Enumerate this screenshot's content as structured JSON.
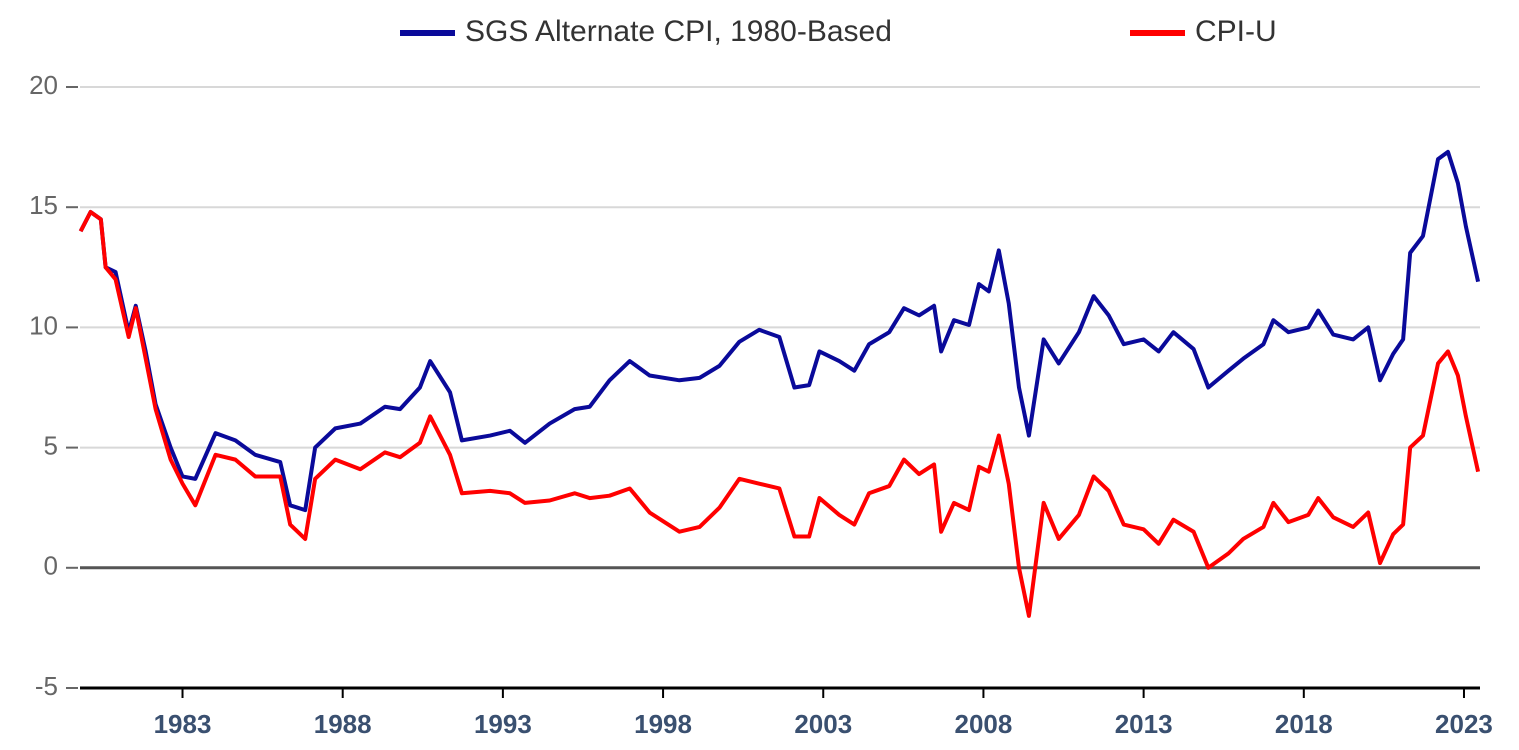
{
  "chart_data": {
    "type": "line",
    "x": [
      1979.82,
      1980.13,
      1980.45,
      1980.6,
      1980.91,
      1981.32,
      1981.54,
      1981.85,
      1982.16,
      1982.63,
      1983.0,
      1983.4,
      1984.03,
      1984.65,
      1985.27,
      1986.05,
      1986.36,
      1986.83,
      1987.14,
      1987.77,
      1988.55,
      1989.32,
      1989.79,
      1990.41,
      1990.73,
      1991.35,
      1991.72,
      1992.6,
      1993.22,
      1993.69,
      1994.46,
      1995.24,
      1995.71,
      1996.33,
      1996.96,
      1997.58,
      1998.51,
      1999.14,
      1999.76,
      2000.38,
      2001.0,
      2001.63,
      2002.1,
      2002.56,
      2002.88,
      2003.5,
      2003.97,
      2004.43,
      2005.06,
      2005.52,
      2005.99,
      2006.46,
      2006.68,
      2007.08,
      2007.55,
      2007.86,
      2008.17,
      2008.48,
      2008.79,
      2009.11,
      2009.42,
      2009.88,
      2010.35,
      2010.98,
      2011.44,
      2011.91,
      2012.38,
      2013.0,
      2013.47,
      2013.93,
      2014.56,
      2015.02,
      2015.65,
      2016.11,
      2016.74,
      2017.05,
      2017.52,
      2018.14,
      2018.45,
      2018.92,
      2019.54,
      2020.01,
      2020.38,
      2020.79,
      2021.1,
      2021.32,
      2021.72,
      2022.19,
      2022.5,
      2022.81,
      2023.06,
      2023.44
    ],
    "series": [
      {
        "name": "SGS Alternate CPI, 1980-Based",
        "color": "#0a0a9a",
        "values": [
          14,
          14.8,
          14.5,
          12.5,
          12.3,
          9.8,
          10.9,
          9,
          6.8,
          5,
          3.8,
          3.7,
          5.6,
          5.3,
          4.7,
          4.4,
          2.6,
          2.4,
          5,
          5.8,
          6,
          6.7,
          6.6,
          7.5,
          8.6,
          7.3,
          5.3,
          5.5,
          5.7,
          5.2,
          6,
          6.6,
          6.7,
          7.8,
          8.6,
          8,
          7.8,
          7.9,
          8.4,
          9.4,
          9.9,
          9.6,
          7.5,
          7.6,
          9,
          8.6,
          8.2,
          9.3,
          9.8,
          10.8,
          10.5,
          10.9,
          9,
          10.3,
          10.1,
          11.8,
          11.5,
          13.2,
          11,
          7.5,
          5.5,
          9.5,
          8.5,
          9.8,
          11.3,
          10.5,
          9.3,
          9.5,
          9,
          9.8,
          9.1,
          7.5,
          8.2,
          8.7,
          9.3,
          10.3,
          9.8,
          10,
          10.7,
          9.7,
          9.5,
          10,
          7.8,
          8.9,
          9.5,
          13.1,
          13.8,
          17,
          17.3,
          16,
          14.2,
          11.9
        ]
      },
      {
        "name": "CPI-U",
        "color": "#ff0000",
        "values": [
          14,
          14.8,
          14.5,
          12.5,
          12,
          9.6,
          10.8,
          8.7,
          6.6,
          4.5,
          3.5,
          2.6,
          4.7,
          4.5,
          3.8,
          3.8,
          1.8,
          1.2,
          3.7,
          4.5,
          4.1,
          4.8,
          4.6,
          5.2,
          6.3,
          4.7,
          3.1,
          3.2,
          3.1,
          2.7,
          2.8,
          3.1,
          2.9,
          3,
          3.3,
          2.3,
          1.5,
          1.7,
          2.5,
          3.7,
          3.5,
          3.3,
          1.3,
          1.3,
          2.9,
          2.2,
          1.8,
          3.1,
          3.4,
          4.5,
          3.9,
          4.3,
          1.5,
          2.7,
          2.4,
          4.2,
          4,
          5.5,
          3.5,
          0,
          -2,
          2.7,
          1.2,
          2.2,
          3.8,
          3.2,
          1.8,
          1.6,
          1,
          2,
          1.5,
          0,
          0.6,
          1.2,
          1.7,
          2.7,
          1.9,
          2.2,
          2.9,
          2.1,
          1.7,
          2.3,
          0.2,
          1.4,
          1.8,
          5,
          5.5,
          8.5,
          9,
          8,
          6.3,
          4
        ]
      }
    ],
    "xlim": [
      1979.8,
      2023.5
    ],
    "xticks": [
      1983,
      1988,
      1993,
      1998,
      2003,
      2008,
      2013,
      2018,
      2023
    ],
    "ylim": [
      -5,
      20
    ],
    "yticks": [
      -5,
      0,
      5,
      10,
      15,
      20
    ],
    "grid": true,
    "legend": "top"
  }
}
